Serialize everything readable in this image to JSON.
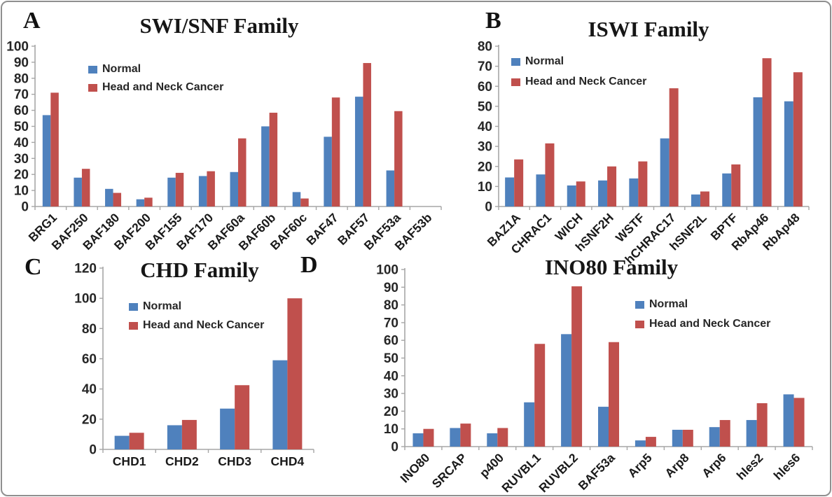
{
  "figure": {
    "description": "Four-panel grouped bar charts of chromatin remodeling gene expression, Normal vs Head and Neck Cancer"
  },
  "legend_labels": {
    "normal": "Normal",
    "cancer": "Head and Neck Cancer"
  },
  "colors": {
    "normal_blue": "#4F81BD",
    "cancer_red": "#C0504D",
    "axis_gray": "#A6A6A6",
    "text_dark": "#262626"
  },
  "chart_data": [
    {
      "panel_label": "A",
      "type": "bar",
      "title": "SWI/SNF Family",
      "categories": [
        "BRG1",
        "BAF250",
        "BAF180",
        "BAF200",
        "BAF155",
        "BAF170",
        "BAF60a",
        "BAF60b",
        "BAF60c",
        "BAF47",
        "BAF57",
        "BAF53a",
        "BAF53b"
      ],
      "series": [
        {
          "name": "Normal",
          "color": "#4F81BD",
          "values": [
            57,
            18,
            11,
            4.5,
            18,
            19,
            21.5,
            50,
            9,
            43.5,
            68.5,
            22.5,
            0
          ]
        },
        {
          "name": "Head and Neck Cancer",
          "color": "#C0504D",
          "values": [
            71,
            23.5,
            8.5,
            5.5,
            21,
            22,
            42.5,
            58.5,
            5,
            68,
            89.5,
            59.5,
            0
          ]
        }
      ],
      "ylim": [
        0,
        100
      ],
      "ytick_step": 10,
      "yticks": [
        0,
        10,
        20,
        30,
        40,
        50,
        60,
        70,
        80,
        90,
        100
      ],
      "xlabel": "",
      "ylabel": "",
      "grid": false,
      "legend_position": "upper-left",
      "xtick_rotation": 45
    },
    {
      "panel_label": "B",
      "type": "bar",
      "title": "ISWI Family",
      "categories": [
        "BAZ1A",
        "CHRAC1",
        "WICH",
        "hSNF2H",
        "WSTF",
        "hCHRAC17",
        "hSNF2L",
        "BPTF",
        "RbAp46",
        "RbAp48"
      ],
      "series": [
        {
          "name": "Normal",
          "color": "#4F81BD",
          "values": [
            14.5,
            16,
            10.5,
            13,
            14,
            34,
            6,
            16.5,
            54.5,
            52.5
          ]
        },
        {
          "name": "Head and Neck Cancer",
          "color": "#C0504D",
          "values": [
            23.5,
            31.5,
            12.5,
            20,
            22.5,
            59,
            7.5,
            21,
            74,
            67
          ]
        }
      ],
      "ylim": [
        0,
        80
      ],
      "ytick_step": 10,
      "yticks": [
        0,
        10,
        20,
        30,
        40,
        50,
        60,
        70,
        80
      ],
      "xlabel": "",
      "ylabel": "",
      "grid": false,
      "legend_position": "upper-left",
      "xtick_rotation": 45
    },
    {
      "panel_label": "C",
      "type": "bar",
      "title": "CHD Family",
      "categories": [
        "CHD1",
        "CHD2",
        "CHD3",
        "CHD4"
      ],
      "series": [
        {
          "name": "Normal",
          "color": "#4F81BD",
          "values": [
            9,
            16,
            27,
            59
          ]
        },
        {
          "name": "Head and Neck Cancer",
          "color": "#C0504D",
          "values": [
            11,
            19.5,
            42.5,
            100
          ]
        }
      ],
      "ylim": [
        0,
        120
      ],
      "ytick_step": 20,
      "yticks": [
        0,
        20,
        40,
        60,
        80,
        100,
        120
      ],
      "xlabel": "",
      "ylabel": "",
      "grid": false,
      "legend_position": "upper-left",
      "xtick_rotation": 0
    },
    {
      "panel_label": "D",
      "type": "bar",
      "title": "INO80 Family",
      "categories": [
        "INO80",
        "SRCAP",
        "p400",
        "RUVBL1",
        "RUVBL2",
        "BAF53a",
        "Arp5",
        "Arp8",
        "Arp6",
        "hles2",
        "hles6"
      ],
      "series": [
        {
          "name": "Normal",
          "color": "#4F81BD",
          "values": [
            7.5,
            10.5,
            7.5,
            25,
            63.5,
            22.5,
            3.5,
            9.5,
            11,
            15,
            29.5
          ]
        },
        {
          "name": "Head and Neck Cancer",
          "color": "#C0504D",
          "values": [
            10,
            13,
            10.5,
            58,
            90.5,
            59,
            5.5,
            9.5,
            15,
            24.5,
            27.5
          ]
        }
      ],
      "ylim": [
        0,
        100
      ],
      "ytick_step": 10,
      "yticks": [
        0,
        10,
        20,
        30,
        40,
        50,
        60,
        70,
        80,
        90,
        100
      ],
      "xlabel": "",
      "ylabel": "",
      "grid": false,
      "legend_position": "upper-right",
      "xtick_rotation": 45
    }
  ]
}
